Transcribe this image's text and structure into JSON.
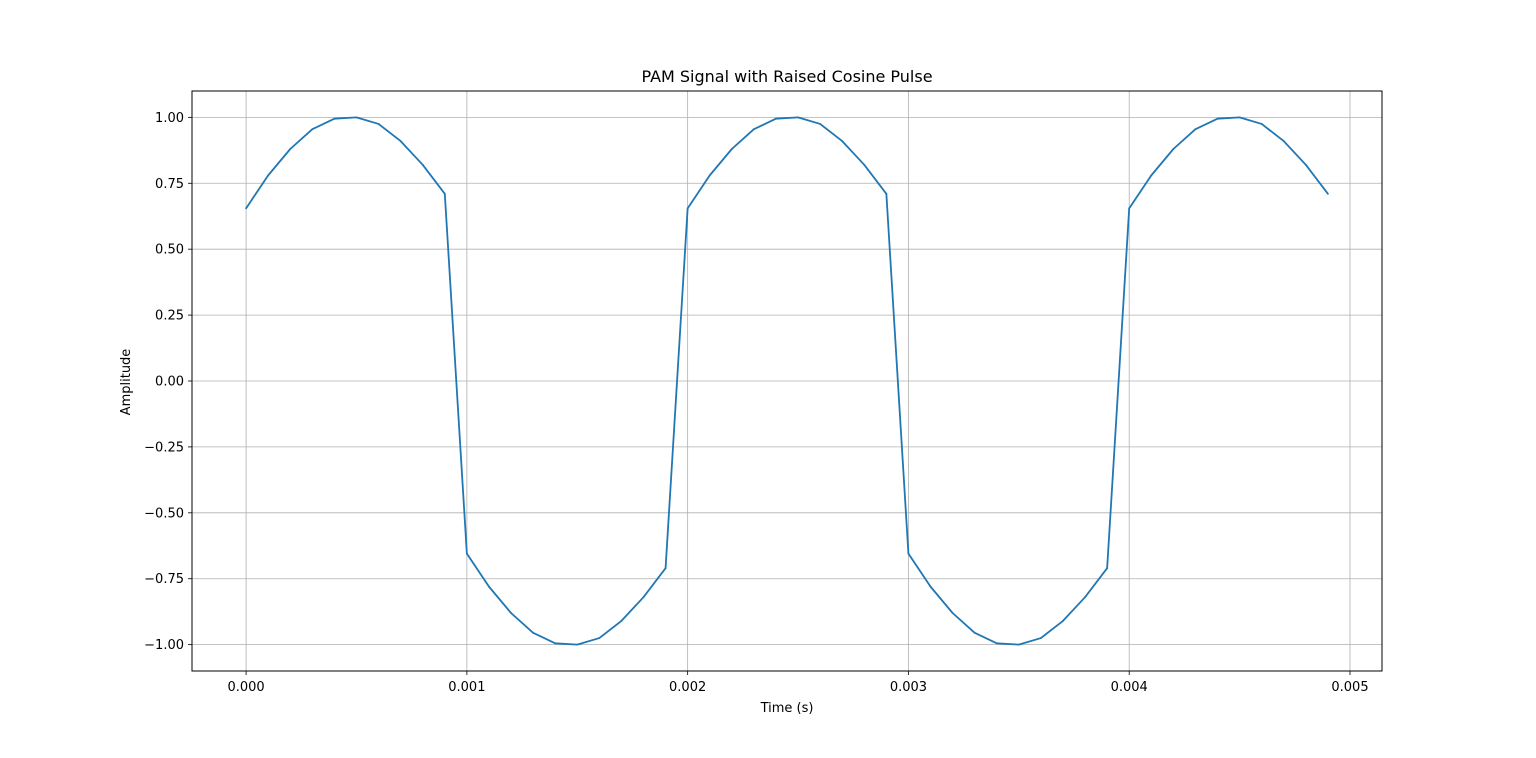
{
  "chart_data": {
    "type": "line",
    "title": "PAM Signal with Raised Cosine Pulse",
    "xlabel": "Time (s)",
    "ylabel": "Amplitude",
    "xlim": [
      -0.000245,
      0.005145
    ],
    "ylim": [
      -1.1,
      1.1
    ],
    "xticks": [
      0.0,
      0.001,
      0.002,
      0.003,
      0.004,
      0.005
    ],
    "xtick_labels": [
      "0.000",
      "0.001",
      "0.002",
      "0.003",
      "0.004",
      "0.005"
    ],
    "yticks": [
      -1.0,
      -0.75,
      -0.5,
      -0.25,
      0.0,
      0.25,
      0.5,
      0.75,
      1.0
    ],
    "ytick_labels": [
      "−1.00",
      "−0.75",
      "−0.50",
      "−0.25",
      "0.00",
      "0.25",
      "0.50",
      "0.75",
      "1.00"
    ],
    "grid": true,
    "series": [
      {
        "color": "#1f77b4",
        "x": [
          0.0,
          0.0001,
          0.0002,
          0.0003,
          0.0004,
          0.0005,
          0.0006,
          0.0007,
          0.0008,
          0.0009,
          0.001,
          0.0011,
          0.0012,
          0.0013,
          0.0014,
          0.0015,
          0.0016,
          0.0017,
          0.0018,
          0.0019,
          0.002,
          0.0021,
          0.0022,
          0.0023,
          0.0024,
          0.0025,
          0.0026,
          0.0027,
          0.0028,
          0.0029,
          0.003,
          0.0031,
          0.0032,
          0.0033,
          0.0034,
          0.0035,
          0.0036,
          0.0037,
          0.0038,
          0.0039,
          0.004,
          0.0041,
          0.0042,
          0.0043,
          0.0044,
          0.0045,
          0.0046,
          0.0047,
          0.0048,
          0.0049
        ],
        "y": [
          0.655,
          0.78,
          0.88,
          0.955,
          0.995,
          1.0,
          0.975,
          0.91,
          0.82,
          0.71,
          -0.655,
          -0.78,
          -0.88,
          -0.955,
          -0.995,
          -1.0,
          -0.975,
          -0.91,
          -0.82,
          -0.71,
          0.655,
          0.78,
          0.88,
          0.955,
          0.995,
          1.0,
          0.975,
          0.91,
          0.82,
          0.71,
          -0.655,
          -0.78,
          -0.88,
          -0.955,
          -0.995,
          -1.0,
          -0.975,
          -0.91,
          -0.82,
          -0.71,
          0.655,
          0.78,
          0.88,
          0.955,
          0.995,
          1.0,
          0.975,
          0.91,
          0.82,
          0.71
        ]
      }
    ]
  }
}
